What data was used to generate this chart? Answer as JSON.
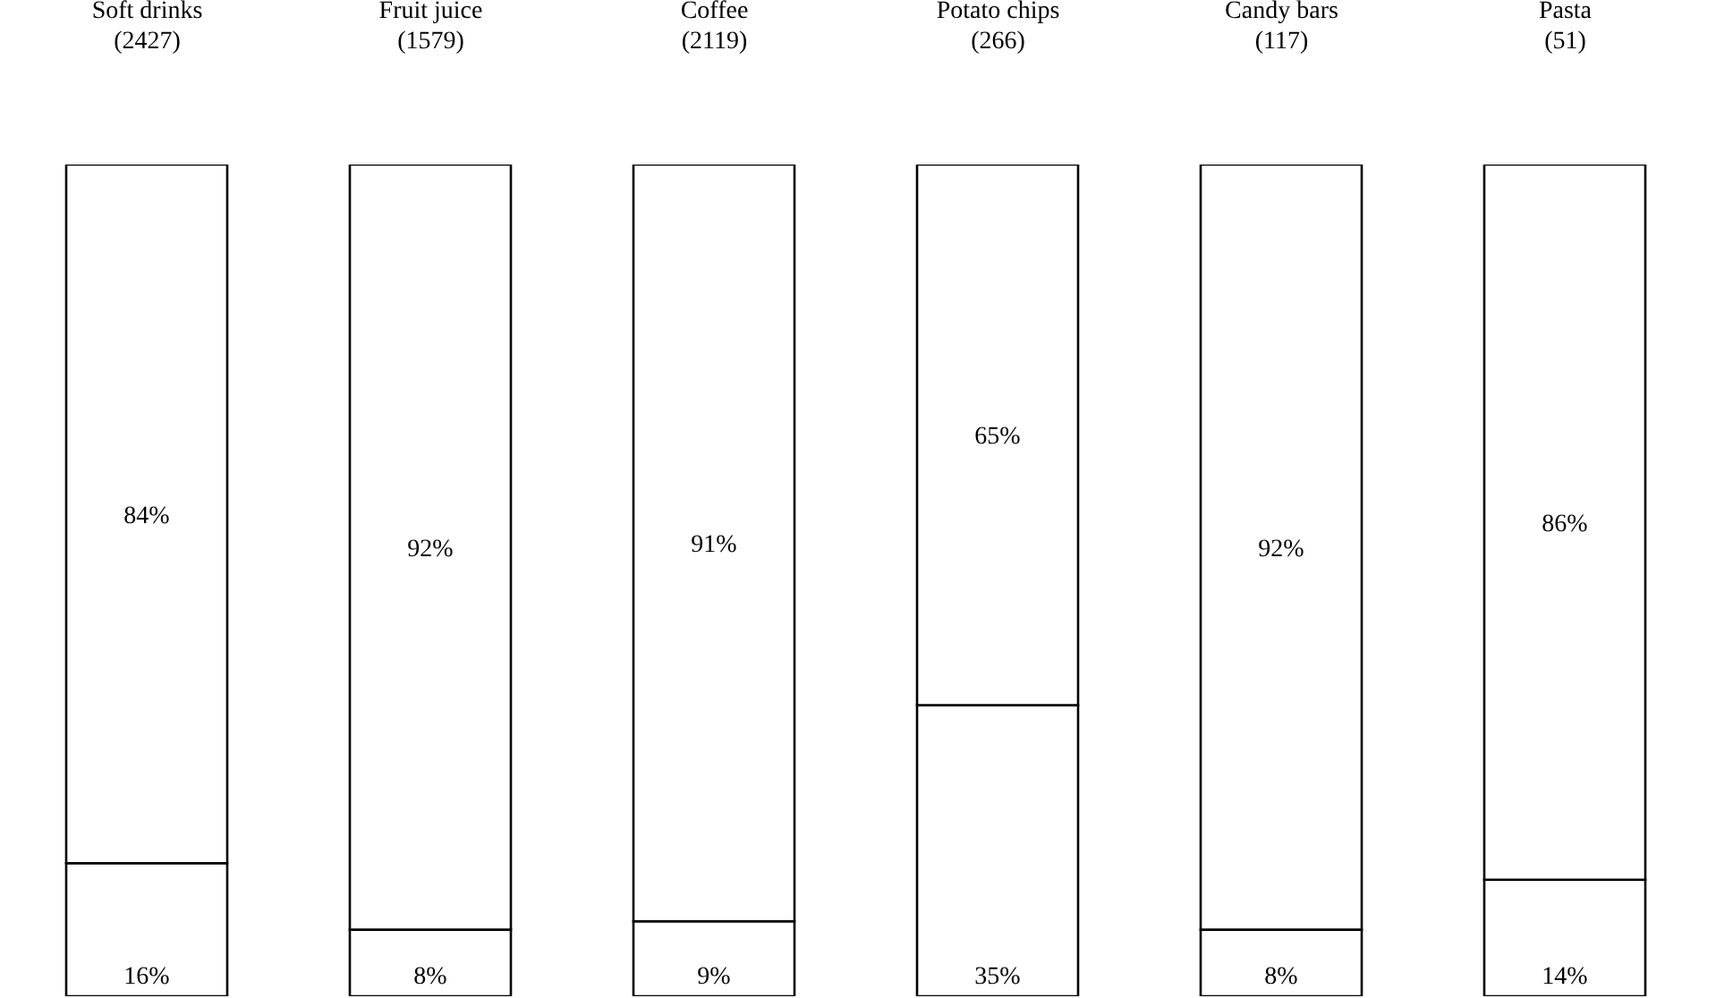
{
  "chart_data": {
    "type": "bar",
    "stacked": true,
    "categories": [
      "Soft drinks\n(2427)",
      "Fruit juice\n(1579)",
      "Coffee\n(2119)",
      "Potato chips\n(266)",
      "Candy bars\n(117)",
      "Pasta\n(51)"
    ],
    "series": [
      {
        "color": "#ffffff",
        "values": [
          16,
          8,
          9,
          35,
          8,
          14
        ],
        "value_labels": [
          "16%",
          "8%",
          "9%",
          "35%",
          "8%",
          "14%"
        ]
      },
      {
        "color": "#ffffff",
        "values": [
          84,
          92,
          91,
          65,
          92,
          86
        ],
        "value_labels": [
          "84%",
          "92%",
          "91%",
          "65%",
          "92%",
          "86%"
        ]
      }
    ],
    "grid": false,
    "legend": false
  }
}
